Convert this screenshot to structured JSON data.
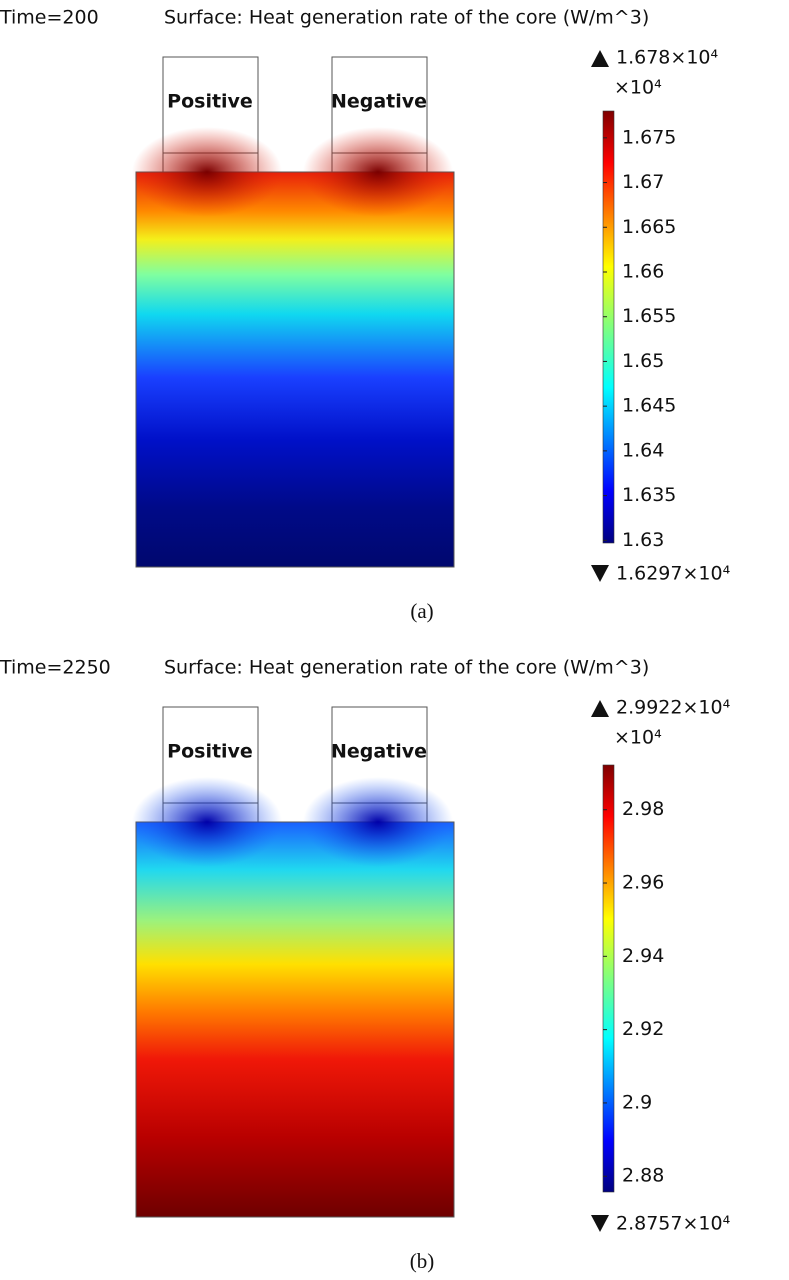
{
  "chart_data": [
    {
      "type": "surface",
      "time_label": "Time=200",
      "title": "Surface: Heat generation rate of the core (W/m^3)",
      "electrodes": [
        "Positive",
        "Negative"
      ],
      "max": {
        "value": 1.678,
        "label": "1.678×10⁴"
      },
      "min": {
        "value": 1.6297,
        "label": "1.6297×10⁴"
      },
      "multiplier": "×10⁴",
      "yticks": [
        1.63,
        1.635,
        1.64,
        1.645,
        1.65,
        1.655,
        1.66,
        1.665,
        1.67,
        1.675
      ],
      "caption": "(a)"
    },
    {
      "type": "surface",
      "time_label": "Time=2250",
      "title": "Surface: Heat generation rate of the core (W/m^3)",
      "electrodes": [
        "Positive",
        "Negative"
      ],
      "max": {
        "value": 2.9922,
        "label": "2.9922×10⁴"
      },
      "min": {
        "value": 2.8757,
        "label": "2.8757×10⁴"
      },
      "multiplier": "×10⁴",
      "yticks": [
        2.88,
        2.9,
        2.92,
        2.94,
        2.96,
        2.98
      ],
      "caption": "(b)"
    }
  ]
}
